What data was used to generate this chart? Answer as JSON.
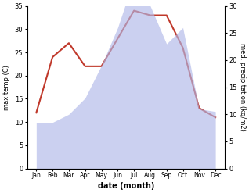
{
  "months": [
    "Jan",
    "Feb",
    "Mar",
    "Apr",
    "May",
    "Jun",
    "Jul",
    "Aug",
    "Sep",
    "Oct",
    "Nov",
    "Dec"
  ],
  "temperature": [
    12,
    24,
    27,
    22,
    22,
    28,
    34,
    33,
    33,
    26,
    13,
    11
  ],
  "precipitation": [
    8.5,
    8.5,
    10,
    13,
    19,
    26,
    35,
    30,
    23,
    26,
    11,
    10.5
  ],
  "temp_color": "#c0392b",
  "precip_color": "#b0b8e8",
  "temp_ylim": [
    0,
    35
  ],
  "precip_ylim": [
    0,
    30
  ],
  "temp_yticks": [
    0,
    5,
    10,
    15,
    20,
    25,
    30,
    35
  ],
  "precip_yticks": [
    0,
    5,
    10,
    15,
    20,
    25,
    30
  ],
  "ylabel_left": "max temp (C)",
  "ylabel_right": "med. precipitation (kg/m2)",
  "xlabel": "date (month)",
  "bg_color": "#ffffff",
  "temp_linewidth": 1.5,
  "precip_alpha": 0.65
}
